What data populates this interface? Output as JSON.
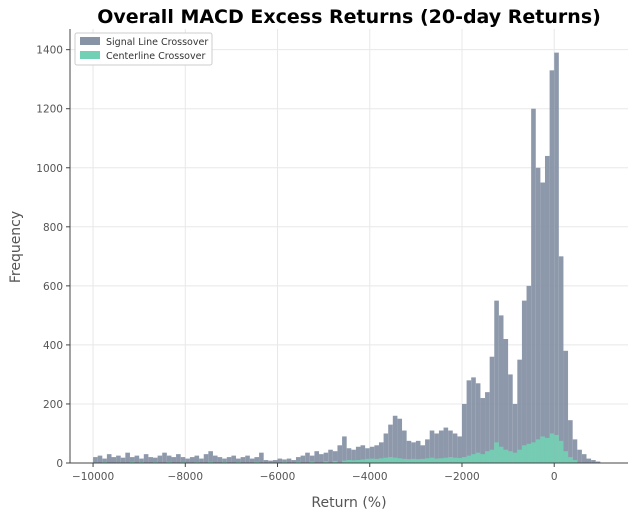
{
  "chart_data": {
    "type": "histogram",
    "title": "Overall MACD Excess Returns (20-day Returns)",
    "xlabel": "Return (%)",
    "ylabel": "Frequency",
    "xlim": [
      -10500,
      1600
    ],
    "ylim": [
      0,
      1470
    ],
    "xticks": [
      -10000,
      -8000,
      -6000,
      -4000,
      -2000,
      0
    ],
    "yticks": [
      0,
      200,
      400,
      600,
      800,
      1000,
      1200,
      1400
    ],
    "grid": true,
    "legend_position": "top-left",
    "bin_width": 100,
    "series": [
      {
        "name": "Signal Line Crossover",
        "color": "#8794a6",
        "bins": [
          [
            -10000,
            20
          ],
          [
            -9900,
            25
          ],
          [
            -9800,
            15
          ],
          [
            -9700,
            30
          ],
          [
            -9600,
            20
          ],
          [
            -9500,
            25
          ],
          [
            -9400,
            18
          ],
          [
            -9300,
            35
          ],
          [
            -9200,
            20
          ],
          [
            -9100,
            25
          ],
          [
            -9000,
            15
          ],
          [
            -8900,
            30
          ],
          [
            -8800,
            20
          ],
          [
            -8700,
            18
          ],
          [
            -8600,
            25
          ],
          [
            -8500,
            35
          ],
          [
            -8400,
            25
          ],
          [
            -8300,
            20
          ],
          [
            -8200,
            30
          ],
          [
            -8100,
            20
          ],
          [
            -8000,
            15
          ],
          [
            -7900,
            20
          ],
          [
            -7800,
            25
          ],
          [
            -7700,
            15
          ],
          [
            -7600,
            30
          ],
          [
            -7500,
            40
          ],
          [
            -7400,
            25
          ],
          [
            -7300,
            20
          ],
          [
            -7200,
            15
          ],
          [
            -7100,
            20
          ],
          [
            -7000,
            25
          ],
          [
            -6900,
            15
          ],
          [
            -6800,
            20
          ],
          [
            -6700,
            25
          ],
          [
            -6600,
            15
          ],
          [
            -6500,
            20
          ],
          [
            -6400,
            35
          ],
          [
            -6300,
            10
          ],
          [
            -6200,
            8
          ],
          [
            -6100,
            10
          ],
          [
            -6000,
            15
          ],
          [
            -5900,
            12
          ],
          [
            -5800,
            15
          ],
          [
            -5700,
            10
          ],
          [
            -5600,
            20
          ],
          [
            -5500,
            25
          ],
          [
            -5400,
            35
          ],
          [
            -5300,
            25
          ],
          [
            -5200,
            40
          ],
          [
            -5100,
            30
          ],
          [
            -5000,
            35
          ],
          [
            -4900,
            45
          ],
          [
            -4800,
            40
          ],
          [
            -4700,
            60
          ],
          [
            -4600,
            90
          ],
          [
            -4500,
            50
          ],
          [
            -4400,
            45
          ],
          [
            -4300,
            55
          ],
          [
            -4200,
            60
          ],
          [
            -4100,
            50
          ],
          [
            -4000,
            55
          ],
          [
            -3900,
            60
          ],
          [
            -3800,
            70
          ],
          [
            -3700,
            100
          ],
          [
            -3600,
            130
          ],
          [
            -3500,
            160
          ],
          [
            -3400,
            150
          ],
          [
            -3300,
            110
          ],
          [
            -3200,
            75
          ],
          [
            -3100,
            70
          ],
          [
            -3000,
            75
          ],
          [
            -2900,
            60
          ],
          [
            -2800,
            80
          ],
          [
            -2700,
            110
          ],
          [
            -2600,
            100
          ],
          [
            -2500,
            110
          ],
          [
            -2400,
            120
          ],
          [
            -2300,
            110
          ],
          [
            -2200,
            100
          ],
          [
            -2100,
            90
          ],
          [
            -2000,
            200
          ],
          [
            -1900,
            280
          ],
          [
            -1800,
            290
          ],
          [
            -1700,
            270
          ],
          [
            -1600,
            220
          ],
          [
            -1500,
            240
          ],
          [
            -1400,
            360
          ],
          [
            -1300,
            550
          ],
          [
            -1200,
            500
          ],
          [
            -1100,
            420
          ],
          [
            -1000,
            300
          ],
          [
            -900,
            200
          ],
          [
            -800,
            350
          ],
          [
            -700,
            550
          ],
          [
            -600,
            600
          ],
          [
            -500,
            1200
          ],
          [
            -400,
            1000
          ],
          [
            -300,
            950
          ],
          [
            -200,
            1040
          ],
          [
            -100,
            1330
          ],
          [
            0,
            1390
          ],
          [
            100,
            700
          ],
          [
            200,
            380
          ],
          [
            300,
            145
          ],
          [
            400,
            80
          ],
          [
            500,
            45
          ],
          [
            600,
            30
          ],
          [
            700,
            15
          ],
          [
            800,
            10
          ],
          [
            900,
            5
          ]
        ]
      },
      {
        "name": "Centerline Crossover",
        "color": "#72d1b4",
        "bins": [
          [
            -10000,
            2
          ],
          [
            -9800,
            3
          ],
          [
            -9500,
            2
          ],
          [
            -9200,
            4
          ],
          [
            -9000,
            3
          ],
          [
            -8700,
            3
          ],
          [
            -8400,
            4
          ],
          [
            -8100,
            3
          ],
          [
            -7800,
            3
          ],
          [
            -7500,
            4
          ],
          [
            -7200,
            3
          ],
          [
            -6900,
            3
          ],
          [
            -6500,
            4
          ],
          [
            -6200,
            2
          ],
          [
            -5900,
            3
          ],
          [
            -5600,
            4
          ],
          [
            -5300,
            5
          ],
          [
            -5000,
            6
          ],
          [
            -4800,
            7
          ],
          [
            -4600,
            8
          ],
          [
            -4500,
            10
          ],
          [
            -4400,
            9
          ],
          [
            -4300,
            10
          ],
          [
            -4200,
            12
          ],
          [
            -4100,
            14
          ],
          [
            -4000,
            15
          ],
          [
            -3900,
            14
          ],
          [
            -3800,
            16
          ],
          [
            -3700,
            18
          ],
          [
            -3600,
            20
          ],
          [
            -3500,
            18
          ],
          [
            -3400,
            16
          ],
          [
            -3300,
            14
          ],
          [
            -3200,
            13
          ],
          [
            -3100,
            14
          ],
          [
            -3000,
            13
          ],
          [
            -2900,
            14
          ],
          [
            -2800,
            16
          ],
          [
            -2700,
            18
          ],
          [
            -2600,
            15
          ],
          [
            -2500,
            16
          ],
          [
            -2400,
            18
          ],
          [
            -2300,
            20
          ],
          [
            -2200,
            18
          ],
          [
            -2100,
            17
          ],
          [
            -2000,
            20
          ],
          [
            -1900,
            25
          ],
          [
            -1800,
            30
          ],
          [
            -1700,
            35
          ],
          [
            -1600,
            30
          ],
          [
            -1500,
            40
          ],
          [
            -1400,
            45
          ],
          [
            -1300,
            70
          ],
          [
            -1200,
            55
          ],
          [
            -1100,
            45
          ],
          [
            -1000,
            40
          ],
          [
            -900,
            35
          ],
          [
            -800,
            45
          ],
          [
            -700,
            60
          ],
          [
            -600,
            65
          ],
          [
            -500,
            70
          ],
          [
            -400,
            80
          ],
          [
            -300,
            90
          ],
          [
            -200,
            85
          ],
          [
            -100,
            100
          ],
          [
            0,
            95
          ],
          [
            100,
            75
          ],
          [
            200,
            40
          ],
          [
            300,
            20
          ],
          [
            400,
            10
          ]
        ]
      }
    ]
  }
}
